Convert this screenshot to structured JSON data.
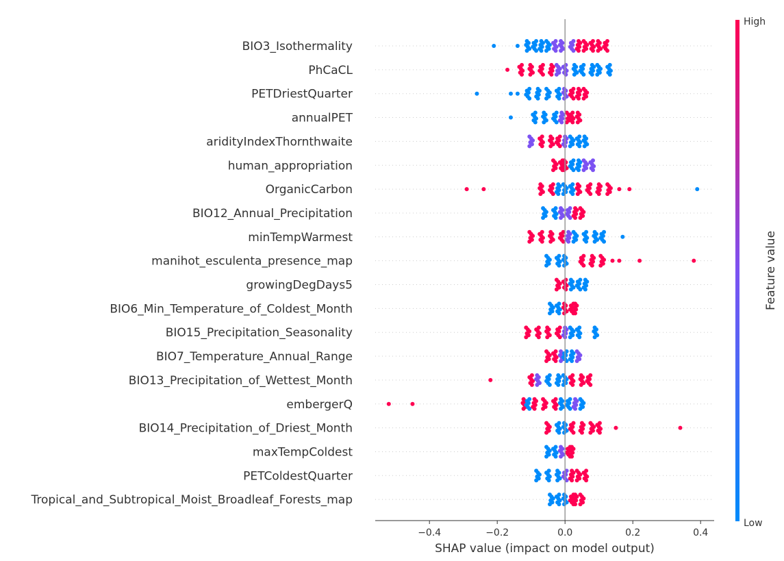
{
  "chart_data": {
    "type": "scatter",
    "subtype": "shap-beeswarm",
    "xlabel": "SHAP value (impact on model output)",
    "xlim": [
      -0.56,
      0.44
    ],
    "xticks": [
      -0.4,
      -0.2,
      0.0,
      0.2,
      0.4
    ],
    "xtick_labels": [
      "−0.4",
      "−0.2",
      "0.0",
      "0.2",
      "0.4"
    ],
    "colorbar": {
      "label": "Feature value",
      "high": "High",
      "low": "Low",
      "low_color": "#008bfb",
      "high_color": "#ff0052"
    },
    "features": [
      {
        "name": "BIO3_Isothermality",
        "points": [
          [
            -0.21,
            "low"
          ],
          [
            -0.14,
            "low"
          ],
          [
            -0.11,
            "low"
          ],
          [
            -0.09,
            "low"
          ],
          [
            -0.07,
            "low"
          ],
          [
            -0.05,
            "low"
          ],
          [
            -0.03,
            "mid"
          ],
          [
            -0.01,
            "mid"
          ],
          [
            0.02,
            "mid"
          ],
          [
            0.04,
            "high"
          ],
          [
            0.06,
            "high"
          ],
          [
            0.08,
            "high"
          ],
          [
            0.1,
            "high"
          ],
          [
            0.12,
            "high"
          ]
        ]
      },
      {
        "name": "PhCaCL",
        "points": [
          [
            -0.17,
            "high"
          ],
          [
            -0.13,
            "high"
          ],
          [
            -0.1,
            "high"
          ],
          [
            -0.07,
            "high"
          ],
          [
            -0.04,
            "high"
          ],
          [
            -0.02,
            "mid"
          ],
          [
            0.0,
            "mid"
          ],
          [
            0.03,
            "low"
          ],
          [
            0.05,
            "low"
          ],
          [
            0.08,
            "low"
          ],
          [
            0.1,
            "low"
          ],
          [
            0.13,
            "low"
          ]
        ]
      },
      {
        "name": "PETDriestQuarter",
        "points": [
          [
            -0.26,
            "low"
          ],
          [
            -0.16,
            "low"
          ],
          [
            -0.14,
            "low"
          ],
          [
            -0.11,
            "low"
          ],
          [
            -0.08,
            "low"
          ],
          [
            -0.05,
            "low"
          ],
          [
            -0.02,
            "low"
          ],
          [
            0.0,
            "mid"
          ],
          [
            0.02,
            "high"
          ],
          [
            0.04,
            "high"
          ],
          [
            0.06,
            "high"
          ]
        ]
      },
      {
        "name": "annualPET",
        "points": [
          [
            -0.16,
            "low"
          ],
          [
            -0.09,
            "low"
          ],
          [
            -0.06,
            "low"
          ],
          [
            -0.03,
            "low"
          ],
          [
            -0.01,
            "mid"
          ],
          [
            0.01,
            "high"
          ],
          [
            0.02,
            "high"
          ],
          [
            0.04,
            "high"
          ]
        ]
      },
      {
        "name": "aridityIndexThornthwaite",
        "points": [
          [
            -0.1,
            "mid"
          ],
          [
            -0.07,
            "high"
          ],
          [
            -0.04,
            "high"
          ],
          [
            -0.02,
            "high"
          ],
          [
            0.0,
            "mid"
          ],
          [
            0.02,
            "low"
          ],
          [
            0.04,
            "low"
          ],
          [
            0.06,
            "low"
          ]
        ]
      },
      {
        "name": "human_appropriation",
        "points": [
          [
            -0.03,
            "high"
          ],
          [
            -0.01,
            "high"
          ],
          [
            0.0,
            "high"
          ],
          [
            0.02,
            "low"
          ],
          [
            0.04,
            "low"
          ],
          [
            0.06,
            "mid"
          ],
          [
            0.08,
            "mid"
          ]
        ]
      },
      {
        "name": "OrganicCarbon",
        "points": [
          [
            -0.29,
            "high"
          ],
          [
            -0.24,
            "high"
          ],
          [
            -0.07,
            "high"
          ],
          [
            -0.04,
            "high"
          ],
          [
            -0.02,
            "low"
          ],
          [
            0.0,
            "low"
          ],
          [
            0.02,
            "low"
          ],
          [
            0.04,
            "high"
          ],
          [
            0.07,
            "high"
          ],
          [
            0.1,
            "high"
          ],
          [
            0.13,
            "high"
          ],
          [
            0.16,
            "high"
          ],
          [
            0.19,
            "high"
          ],
          [
            0.39,
            "low"
          ]
        ]
      },
      {
        "name": "BIO12_Annual_Precipitation",
        "points": [
          [
            -0.06,
            "low"
          ],
          [
            -0.03,
            "low"
          ],
          [
            -0.01,
            "mid"
          ],
          [
            0.01,
            "mid"
          ],
          [
            0.03,
            "high"
          ],
          [
            0.05,
            "high"
          ]
        ]
      },
      {
        "name": "minTempWarmest",
        "points": [
          [
            -0.1,
            "high"
          ],
          [
            -0.07,
            "high"
          ],
          [
            -0.04,
            "high"
          ],
          [
            -0.01,
            "high"
          ],
          [
            0.01,
            "mid"
          ],
          [
            0.03,
            "low"
          ],
          [
            0.06,
            "low"
          ],
          [
            0.09,
            "low"
          ],
          [
            0.11,
            "low"
          ],
          [
            0.17,
            "low"
          ]
        ]
      },
      {
        "name": "manihot_esculenta_presence_map",
        "points": [
          [
            -0.05,
            "low"
          ],
          [
            -0.02,
            "low"
          ],
          [
            0.0,
            "low"
          ],
          [
            0.05,
            "high"
          ],
          [
            0.08,
            "high"
          ],
          [
            0.11,
            "high"
          ],
          [
            0.14,
            "high"
          ],
          [
            0.16,
            "high"
          ],
          [
            0.22,
            "high"
          ],
          [
            0.38,
            "high"
          ]
        ]
      },
      {
        "name": "growingDegDays5",
        "points": [
          [
            -0.02,
            "high"
          ],
          [
            0.0,
            "high"
          ],
          [
            0.02,
            "low"
          ],
          [
            0.04,
            "low"
          ],
          [
            0.06,
            "low"
          ]
        ]
      },
      {
        "name": "BIO6_Min_Temperature_of_Coldest_Month",
        "points": [
          [
            -0.04,
            "low"
          ],
          [
            -0.02,
            "low"
          ],
          [
            0.0,
            "high"
          ],
          [
            0.02,
            "high"
          ],
          [
            0.03,
            "high"
          ]
        ]
      },
      {
        "name": "BIO15_Precipitation_Seasonality",
        "points": [
          [
            -0.11,
            "high"
          ],
          [
            -0.08,
            "high"
          ],
          [
            -0.05,
            "high"
          ],
          [
            -0.02,
            "high"
          ],
          [
            0.0,
            "mid"
          ],
          [
            0.02,
            "low"
          ],
          [
            0.04,
            "low"
          ],
          [
            0.09,
            "low"
          ]
        ]
      },
      {
        "name": "BIO7_Temperature_Annual_Range",
        "points": [
          [
            -0.05,
            "high"
          ],
          [
            -0.03,
            "high"
          ],
          [
            -0.01,
            "mid"
          ],
          [
            0.0,
            "low"
          ],
          [
            0.02,
            "low"
          ],
          [
            0.04,
            "mid"
          ]
        ]
      },
      {
        "name": "BIO13_Precipitation_of_Wettest_Month",
        "points": [
          [
            -0.22,
            "high"
          ],
          [
            -0.1,
            "high"
          ],
          [
            -0.08,
            "mid"
          ],
          [
            -0.05,
            "low"
          ],
          [
            -0.02,
            "low"
          ],
          [
            0.0,
            "low"
          ],
          [
            0.02,
            "high"
          ],
          [
            0.05,
            "high"
          ],
          [
            0.07,
            "high"
          ]
        ]
      },
      {
        "name": "embergerQ",
        "points": [
          [
            -0.52,
            "high"
          ],
          [
            -0.45,
            "high"
          ],
          [
            -0.12,
            "high"
          ],
          [
            -0.11,
            "low"
          ],
          [
            -0.09,
            "high"
          ],
          [
            -0.06,
            "high"
          ],
          [
            -0.03,
            "high"
          ],
          [
            -0.01,
            "low"
          ],
          [
            0.01,
            "low"
          ],
          [
            0.03,
            "mid"
          ],
          [
            0.05,
            "low"
          ]
        ]
      },
      {
        "name": "BIO14_Precipitation_of_Driest_Month",
        "points": [
          [
            -0.05,
            "high"
          ],
          [
            -0.02,
            "low"
          ],
          [
            0.0,
            "low"
          ],
          [
            0.02,
            "high"
          ],
          [
            0.05,
            "high"
          ],
          [
            0.08,
            "high"
          ],
          [
            0.1,
            "high"
          ],
          [
            0.15,
            "high"
          ],
          [
            0.34,
            "high"
          ]
        ]
      },
      {
        "name": "maxTempColdest",
        "points": [
          [
            -0.05,
            "low"
          ],
          [
            -0.03,
            "low"
          ],
          [
            -0.01,
            "mid"
          ],
          [
            0.01,
            "high"
          ],
          [
            0.02,
            "high"
          ]
        ]
      },
      {
        "name": "PETColdestQuarter",
        "points": [
          [
            -0.08,
            "low"
          ],
          [
            -0.05,
            "low"
          ],
          [
            -0.02,
            "low"
          ],
          [
            0.0,
            "mid"
          ],
          [
            0.02,
            "high"
          ],
          [
            0.04,
            "high"
          ],
          [
            0.06,
            "high"
          ]
        ]
      },
      {
        "name": "Tropical_and_Subtropical_Moist_Broadleaf_Forests_map",
        "points": [
          [
            -0.04,
            "low"
          ],
          [
            -0.02,
            "low"
          ],
          [
            0.0,
            "low"
          ],
          [
            0.02,
            "high"
          ],
          [
            0.03,
            "high"
          ],
          [
            0.05,
            "high"
          ]
        ]
      }
    ]
  }
}
